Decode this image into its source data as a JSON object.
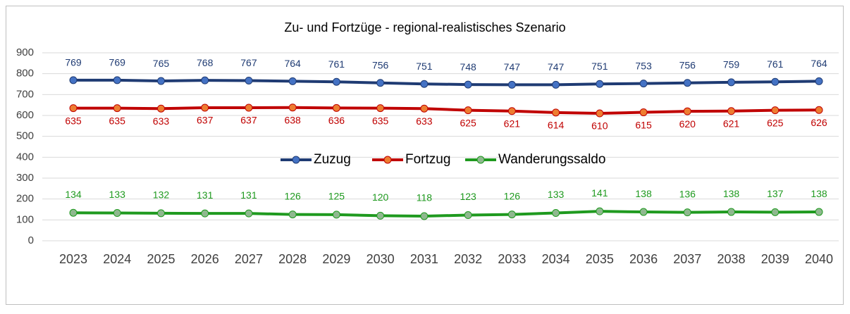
{
  "chart_data": {
    "type": "line",
    "title": "Zu- und Fortzüge - regional-realistisches Szenario",
    "categories": [
      "2023",
      "2024",
      "2025",
      "2026",
      "2027",
      "2028",
      "2029",
      "2030",
      "2031",
      "2032",
      "2033",
      "2034",
      "2035",
      "2036",
      "2037",
      "2038",
      "2039",
      "2040"
    ],
    "series": [
      {
        "name": "Zuzug",
        "color": "#1f3b73",
        "marker_color": "#4472c4",
        "values": [
          769,
          769,
          765,
          768,
          767,
          764,
          761,
          756,
          751,
          748,
          747,
          747,
          751,
          753,
          756,
          759,
          761,
          764
        ]
      },
      {
        "name": "Fortzug",
        "color": "#c00000",
        "marker_color": "#ed7d31",
        "values": [
          635,
          635,
          633,
          637,
          637,
          638,
          636,
          635,
          633,
          625,
          621,
          614,
          610,
          615,
          620,
          621,
          625,
          626
        ]
      },
      {
        "name": "Wanderungssaldo",
        "color": "#1f9a1f",
        "marker_color": "#8fb88f",
        "values": [
          134,
          133,
          132,
          131,
          131,
          126,
          125,
          120,
          118,
          123,
          126,
          133,
          141,
          138,
          136,
          138,
          137,
          138
        ]
      }
    ],
    "ylim": [
      0,
      900
    ],
    "yticks": [
      0,
      100,
      200,
      300,
      400,
      500,
      600,
      700,
      800,
      900
    ],
    "grid": true,
    "legend": "center"
  }
}
